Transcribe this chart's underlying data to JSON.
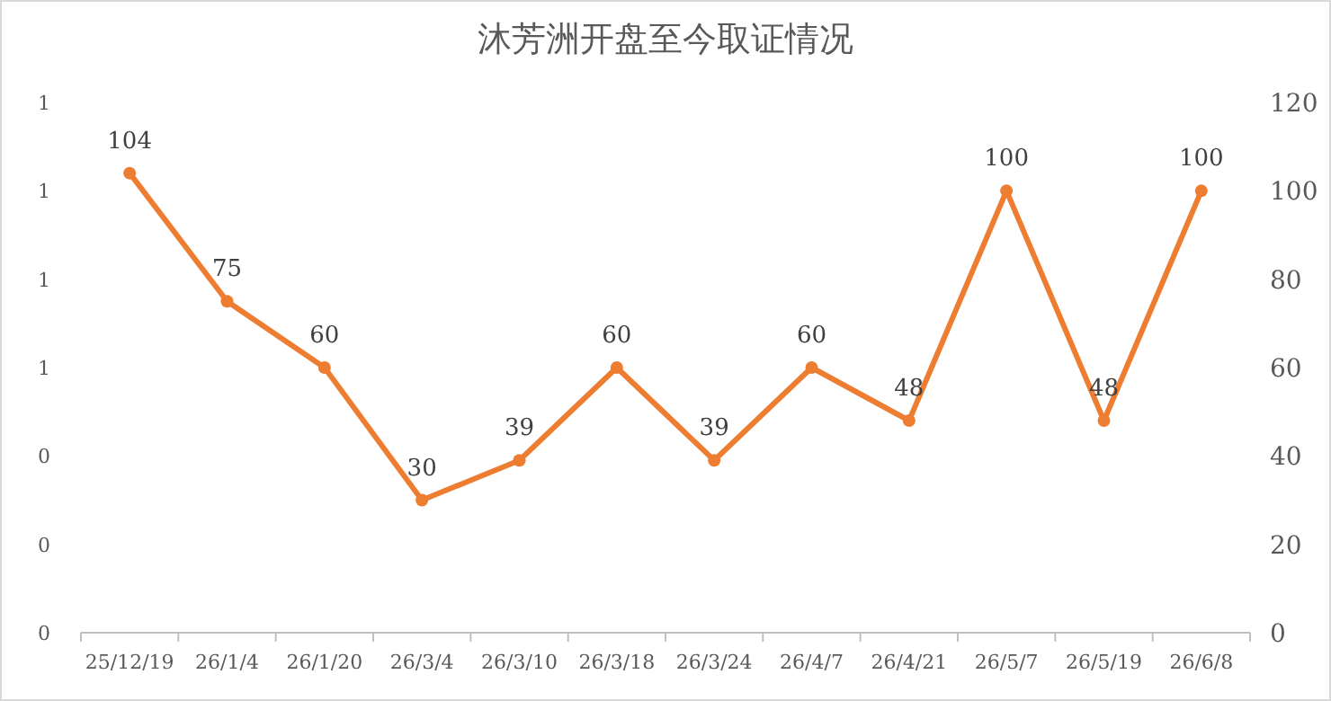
{
  "chart_data": {
    "type": "line",
    "title": "沐芳洲开盘至今取证情况",
    "categories": [
      "25/12/19",
      "26/1/4",
      "26/1/20",
      "26/3/4",
      "26/3/10",
      "26/3/18",
      "26/3/24",
      "26/4/7",
      "26/4/21",
      "26/5/7",
      "26/5/19",
      "26/6/8"
    ],
    "series": [
      {
        "color": "#ed7d31",
        "axis": "y2",
        "values": [
          104,
          75,
          60,
          30,
          39,
          60,
          39,
          60,
          48,
          100,
          48,
          100
        ]
      }
    ],
    "ylim": [
      0,
      1.2
    ],
    "yticks": [
      {
        "value": 0,
        "label": "0"
      },
      {
        "value": 0.2,
        "label": "0"
      },
      {
        "value": 0.4,
        "label": "0"
      },
      {
        "value": 0.6,
        "label": "1"
      },
      {
        "value": 0.8,
        "label": "1"
      },
      {
        "value": 1.0,
        "label": "1"
      },
      {
        "value": 1.2,
        "label": "1"
      }
    ],
    "y2lim": [
      0,
      120
    ],
    "y2ticks": [
      0,
      20,
      40,
      60,
      80,
      100,
      120
    ],
    "data_labels": true,
    "marker": "circle",
    "line_style": "solid"
  }
}
